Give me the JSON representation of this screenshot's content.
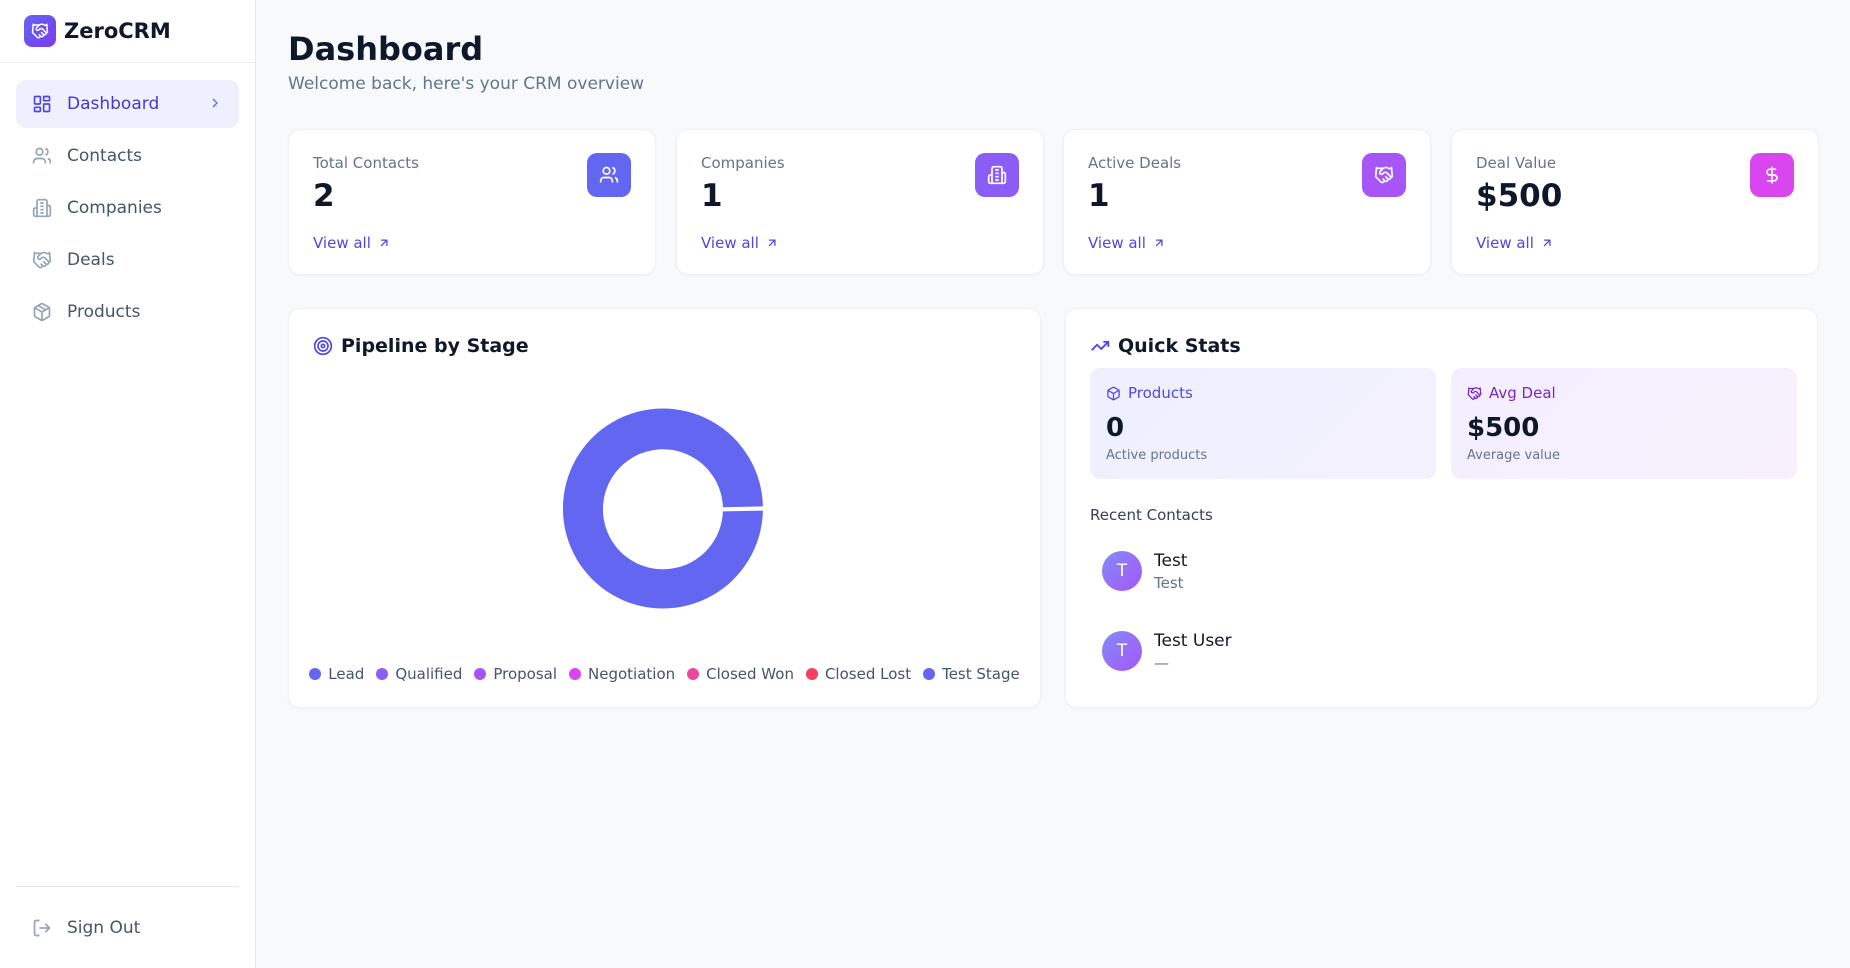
{
  "app": {
    "name": "ZeroCRM"
  },
  "sidebar": {
    "items": [
      {
        "label": "Dashboard",
        "icon": "dashboard-grid-icon",
        "active": true
      },
      {
        "label": "Contacts",
        "icon": "users-icon"
      },
      {
        "label": "Companies",
        "icon": "building-icon"
      },
      {
        "label": "Deals",
        "icon": "handshake-icon"
      },
      {
        "label": "Products",
        "icon": "package-icon"
      }
    ],
    "sign_out": "Sign Out"
  },
  "header": {
    "title": "Dashboard",
    "subtitle": "Welcome back, here's your CRM overview"
  },
  "stats": [
    {
      "label": "Total Contacts",
      "value": "2",
      "link": "View all",
      "icon": "users-icon",
      "color": "#6366f1"
    },
    {
      "label": "Companies",
      "value": "1",
      "link": "View all",
      "icon": "building-icon",
      "color": "#8b5cf6"
    },
    {
      "label": "Active Deals",
      "value": "1",
      "link": "View all",
      "icon": "handshake-icon",
      "color": "#a855f7"
    },
    {
      "label": "Deal Value",
      "value": "$500",
      "link": "View all",
      "icon": "dollar-icon",
      "color": "#d946ef"
    }
  ],
  "pipeline": {
    "title": "Pipeline by Stage",
    "legend": [
      {
        "label": "Lead",
        "color": "#6366f1"
      },
      {
        "label": "Qualified",
        "color": "#8b5cf6"
      },
      {
        "label": "Proposal",
        "color": "#a855f7"
      },
      {
        "label": "Negotiation",
        "color": "#d946ef"
      },
      {
        "label": "Closed Won",
        "color": "#ec4899"
      },
      {
        "label": "Closed Lost",
        "color": "#f43f5e"
      },
      {
        "label": "Test Stage",
        "color": "#6366f1"
      }
    ]
  },
  "quick_stats": {
    "title": "Quick Stats",
    "products": {
      "label": "Products",
      "value": "0",
      "sub": "Active products"
    },
    "avg_deal": {
      "label": "Avg Deal",
      "value": "$500",
      "sub": "Average value"
    },
    "recent_label": "Recent Contacts",
    "contacts": [
      {
        "initial": "T",
        "name": "Test",
        "sub": "Test"
      },
      {
        "initial": "T",
        "name": "Test User",
        "sub": "—"
      }
    ]
  }
}
